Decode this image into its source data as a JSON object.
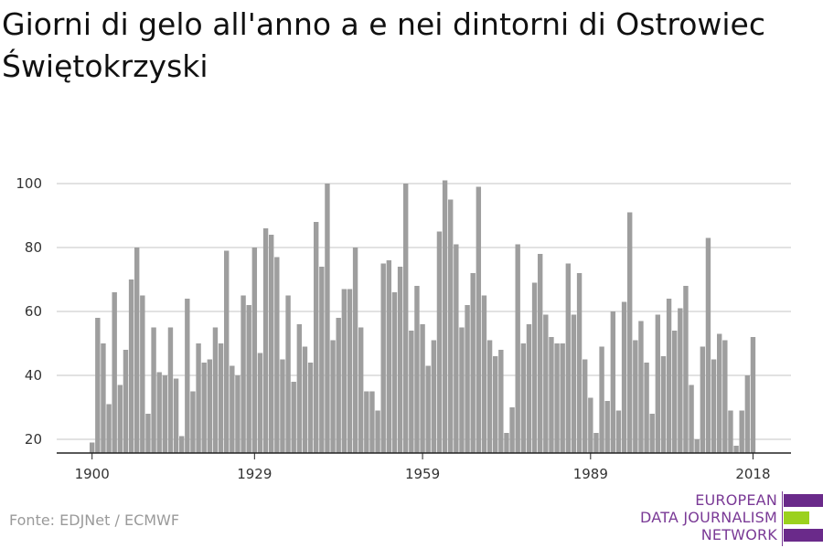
{
  "title": "Giorni di gelo all'anno a e nei dintorni di Ostrowiec Świętokrzyski",
  "source": "Fonte: EDJNet / ECMWF",
  "logo": {
    "lines": [
      "EUROPEAN",
      "DATA JOURNALISM",
      "NETWORK"
    ],
    "colors": {
      "purple": "#6a2a8a",
      "green": "#9bd11e"
    }
  },
  "colors": {
    "bar": "#9e9e9e",
    "grid": "#d9d9d9",
    "axis": "#222222",
    "text": "#333333"
  },
  "chart_data": {
    "type": "bar",
    "x_start": 1900,
    "x_end": 2019,
    "xticks": [
      1900,
      1929,
      1959,
      1989,
      2018
    ],
    "yticks": [
      20,
      40,
      60,
      80,
      100
    ],
    "ylim": [
      15,
      103
    ],
    "grid": true,
    "values": [
      19,
      58,
      50,
      31,
      66,
      37,
      48,
      70,
      80,
      65,
      28,
      55,
      41,
      40,
      55,
      39,
      21,
      64,
      35,
      50,
      44,
      45,
      55,
      50,
      79,
      43,
      40,
      65,
      62,
      80,
      47,
      86,
      84,
      77,
      45,
      65,
      38,
      56,
      49,
      44,
      88,
      74,
      100,
      51,
      58,
      67,
      67,
      80,
      55,
      35,
      35,
      29,
      75,
      76,
      66,
      74,
      100,
      54,
      68,
      56,
      43,
      51,
      85,
      101,
      95,
      81,
      55,
      62,
      72,
      99,
      65,
      51,
      46,
      48,
      22,
      30,
      81,
      50,
      56,
      69,
      78,
      59,
      52,
      50,
      50,
      75,
      59,
      72,
      45,
      33,
      22,
      49,
      32,
      60,
      29,
      63,
      91,
      51,
      57,
      44,
      28,
      59,
      46,
      64,
      54,
      61,
      68,
      37,
      20,
      49,
      83,
      45,
      53,
      51,
      29,
      18,
      29,
      40,
      52
    ]
  }
}
